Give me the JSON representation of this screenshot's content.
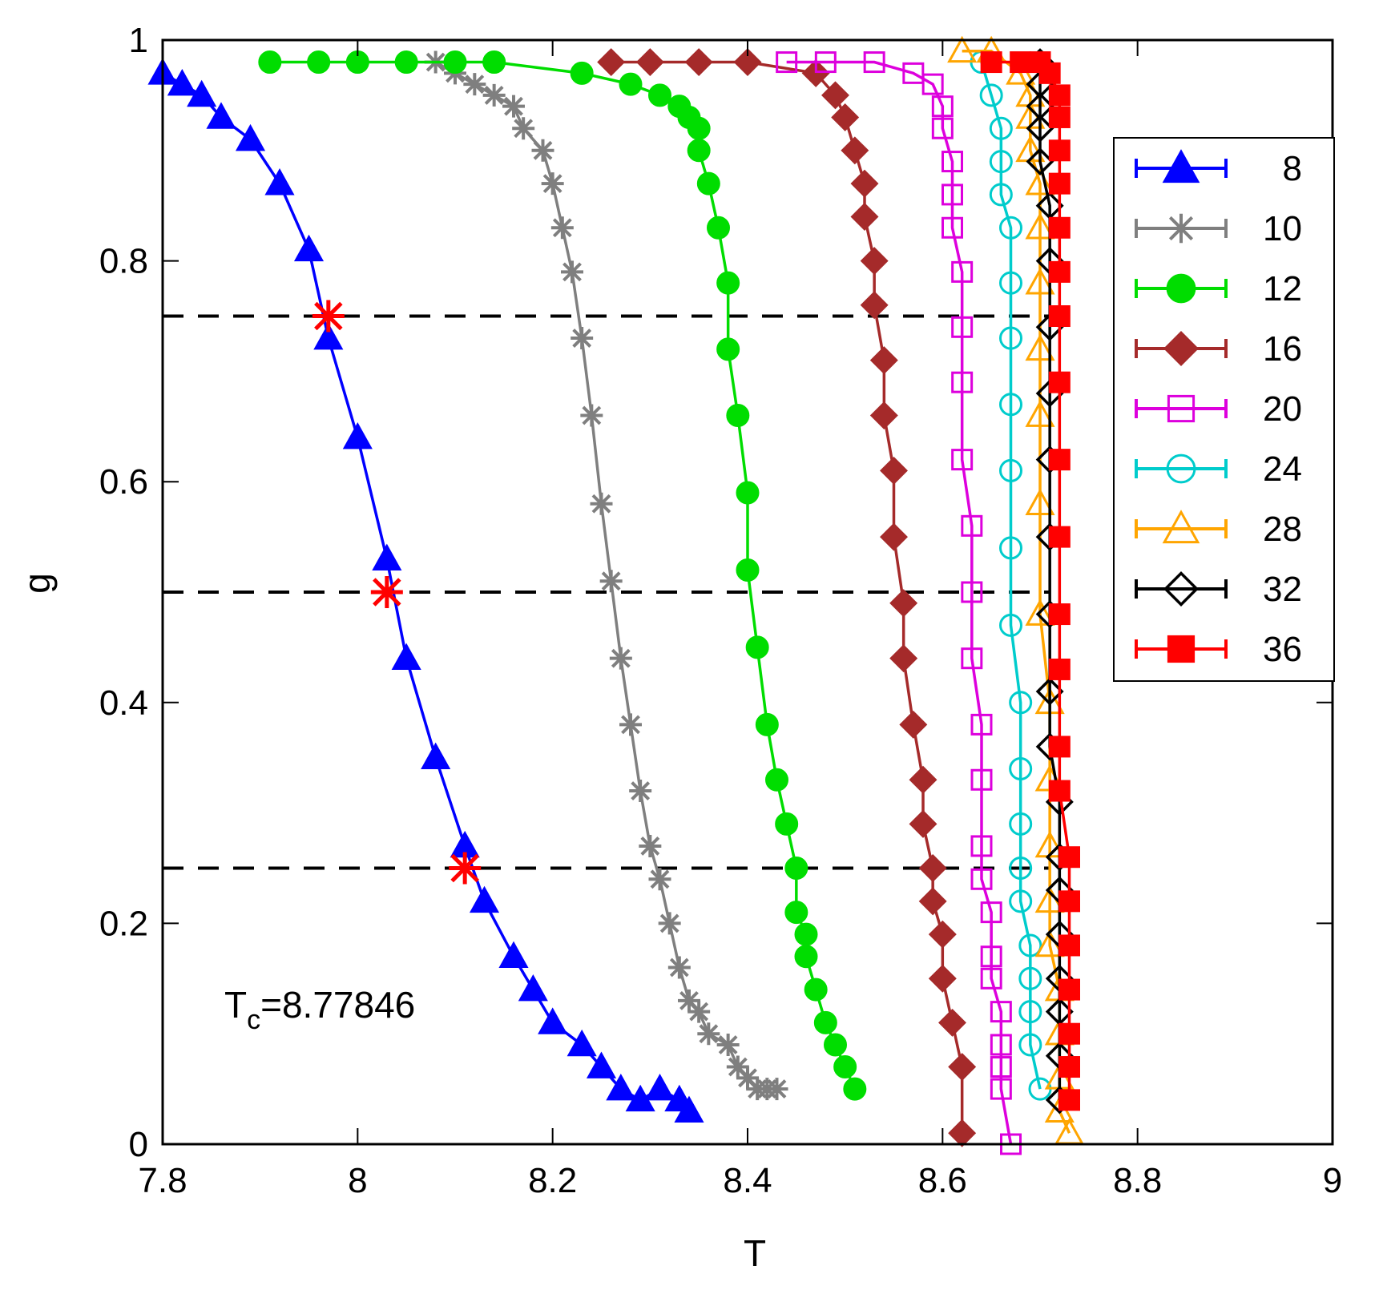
{
  "chart_data": {
    "type": "line",
    "title": "",
    "xlabel": "T",
    "ylabel": "g",
    "xlim": [
      7.8,
      9.0
    ],
    "ylim": [
      0,
      1
    ],
    "xticks": [
      {
        "v": 7.8,
        "label": "7.8"
      },
      {
        "v": 8.0,
        "label": "8"
      },
      {
        "v": 8.2,
        "label": "8.2"
      },
      {
        "v": 8.4,
        "label": "8.4"
      },
      {
        "v": 8.6,
        "label": "8.6"
      },
      {
        "v": 8.8,
        "label": "8.8"
      },
      {
        "v": 9.0,
        "label": "9"
      }
    ],
    "yticks": [
      {
        "v": 0,
        "label": "0"
      },
      {
        "v": 0.2,
        "label": "0.2"
      },
      {
        "v": 0.4,
        "label": "0.4"
      },
      {
        "v": 0.6,
        "label": "0.6"
      },
      {
        "v": 0.8,
        "label": "0.8"
      },
      {
        "v": 1,
        "label": "1"
      }
    ],
    "legend_position": "top-right",
    "annotation": {
      "main": "T",
      "sub": "c",
      "rest": "=8.77846"
    },
    "reference_lines": [
      {
        "y": 0.75,
        "x_end": 8.71
      },
      {
        "y": 0.5,
        "x_end": 8.71
      },
      {
        "y": 0.25,
        "x_end": 8.71
      }
    ],
    "highlight_points": [
      {
        "x": 7.97,
        "y": 0.75
      },
      {
        "x": 8.03,
        "y": 0.5
      },
      {
        "x": 8.11,
        "y": 0.25
      }
    ],
    "colors": {
      "highlight": "#ff0000",
      "reference": "#000000"
    },
    "series": [
      {
        "name": "8",
        "color": "#0000ff",
        "marker": "triangle-filled",
        "x": [
          7.8,
          7.82,
          7.84,
          7.86,
          7.89,
          7.92,
          7.95,
          7.97,
          8.0,
          8.03,
          8.05,
          8.08,
          8.11,
          8.13,
          8.16,
          8.18,
          8.2,
          8.23,
          8.25,
          8.27,
          8.29,
          8.31,
          8.33,
          8.34
        ],
        "y": [
          0.97,
          0.96,
          0.95,
          0.93,
          0.91,
          0.87,
          0.81,
          0.73,
          0.64,
          0.53,
          0.44,
          0.35,
          0.27,
          0.22,
          0.17,
          0.14,
          0.11,
          0.09,
          0.07,
          0.05,
          0.04,
          0.05,
          0.04,
          0.03
        ]
      },
      {
        "name": "10",
        "color": "#7f7f7f",
        "marker": "asterisk",
        "x": [
          8.08,
          8.1,
          8.12,
          8.14,
          8.16,
          8.17,
          8.19,
          8.2,
          8.21,
          8.22,
          8.23,
          8.24,
          8.25,
          8.26,
          8.27,
          8.28,
          8.29,
          8.3,
          8.31,
          8.32,
          8.33,
          8.34,
          8.35,
          8.36,
          8.38,
          8.39,
          8.4,
          8.41,
          8.42,
          8.43
        ],
        "y": [
          0.98,
          0.97,
          0.96,
          0.95,
          0.94,
          0.92,
          0.9,
          0.87,
          0.83,
          0.79,
          0.73,
          0.66,
          0.58,
          0.51,
          0.44,
          0.38,
          0.32,
          0.27,
          0.24,
          0.2,
          0.16,
          0.13,
          0.12,
          0.1,
          0.09,
          0.07,
          0.06,
          0.05,
          0.05,
          0.05
        ]
      },
      {
        "name": "12",
        "color": "#00dd00",
        "marker": "circle-filled",
        "x": [
          7.91,
          7.96,
          8.0,
          8.05,
          8.1,
          8.14,
          8.23,
          8.28,
          8.31,
          8.33,
          8.34,
          8.35,
          8.35,
          8.36,
          8.37,
          8.38,
          8.38,
          8.39,
          8.4,
          8.4,
          8.41,
          8.42,
          8.43,
          8.44,
          8.45,
          8.45,
          8.46,
          8.46,
          8.47,
          8.48,
          8.49,
          8.5,
          8.51
        ],
        "y": [
          0.98,
          0.98,
          0.98,
          0.98,
          0.98,
          0.98,
          0.97,
          0.96,
          0.95,
          0.94,
          0.93,
          0.92,
          0.9,
          0.87,
          0.83,
          0.78,
          0.72,
          0.66,
          0.59,
          0.52,
          0.45,
          0.38,
          0.33,
          0.29,
          0.25,
          0.21,
          0.19,
          0.17,
          0.14,
          0.11,
          0.09,
          0.07,
          0.05
        ]
      },
      {
        "name": "16",
        "color": "#a52a2a",
        "marker": "diamond-filled",
        "x": [
          8.26,
          8.3,
          8.35,
          8.4,
          8.47,
          8.49,
          8.5,
          8.51,
          8.52,
          8.52,
          8.53,
          8.53,
          8.54,
          8.54,
          8.55,
          8.55,
          8.56,
          8.56,
          8.57,
          8.58,
          8.58,
          8.59,
          8.59,
          8.6,
          8.6,
          8.61,
          8.62,
          8.62
        ],
        "y": [
          0.98,
          0.98,
          0.98,
          0.98,
          0.97,
          0.95,
          0.93,
          0.9,
          0.87,
          0.84,
          0.8,
          0.76,
          0.71,
          0.66,
          0.61,
          0.55,
          0.49,
          0.44,
          0.38,
          0.33,
          0.29,
          0.25,
          0.22,
          0.19,
          0.15,
          0.11,
          0.07,
          0.01
        ]
      },
      {
        "name": "20",
        "color": "#dd00dd",
        "marker": "square-open",
        "x": [
          8.44,
          8.48,
          8.53,
          8.57,
          8.59,
          8.6,
          8.6,
          8.61,
          8.61,
          8.61,
          8.62,
          8.62,
          8.62,
          8.62,
          8.63,
          8.63,
          8.63,
          8.64,
          8.64,
          8.64,
          8.64,
          8.65,
          8.65,
          8.65,
          8.66,
          8.66,
          8.66,
          8.66,
          8.67
        ],
        "y": [
          0.98,
          0.98,
          0.98,
          0.97,
          0.96,
          0.94,
          0.92,
          0.89,
          0.86,
          0.83,
          0.79,
          0.74,
          0.69,
          0.62,
          0.56,
          0.5,
          0.44,
          0.38,
          0.33,
          0.27,
          0.24,
          0.21,
          0.17,
          0.15,
          0.12,
          0.09,
          0.07,
          0.05,
          0.0
        ]
      },
      {
        "name": "24",
        "color": "#00cccc",
        "marker": "circle-open",
        "x": [
          8.64,
          8.65,
          8.66,
          8.66,
          8.66,
          8.67,
          8.67,
          8.67,
          8.67,
          8.67,
          8.67,
          8.67,
          8.68,
          8.68,
          8.68,
          8.68,
          8.68,
          8.69,
          8.69,
          8.69,
          8.69,
          8.7
        ],
        "y": [
          0.98,
          0.95,
          0.92,
          0.89,
          0.86,
          0.83,
          0.78,
          0.73,
          0.67,
          0.61,
          0.54,
          0.47,
          0.4,
          0.34,
          0.29,
          0.25,
          0.22,
          0.18,
          0.15,
          0.12,
          0.09,
          0.05
        ]
      },
      {
        "name": "28",
        "color": "#ffa500",
        "marker": "triangle-open",
        "x": [
          8.62,
          8.65,
          8.68,
          8.69,
          8.69,
          8.69,
          8.7,
          8.7,
          8.7,
          8.7,
          8.7,
          8.7,
          8.7,
          8.71,
          8.71,
          8.71,
          8.71,
          8.71,
          8.72,
          8.72,
          8.72,
          8.72,
          8.73
        ],
        "y": [
          0.99,
          0.99,
          0.97,
          0.95,
          0.93,
          0.9,
          0.87,
          0.83,
          0.78,
          0.72,
          0.66,
          0.58,
          0.48,
          0.4,
          0.33,
          0.27,
          0.22,
          0.18,
          0.14,
          0.1,
          0.06,
          0.03,
          0.01
        ]
      },
      {
        "name": "32",
        "color": "#000000",
        "marker": "diamond-open",
        "x": [
          8.7,
          8.7,
          8.7,
          8.7,
          8.7,
          8.71,
          8.71,
          8.71,
          8.71,
          8.71,
          8.71,
          8.71,
          8.71,
          8.71,
          8.72,
          8.72,
          8.72,
          8.72,
          8.72,
          8.72,
          8.72,
          8.72
        ],
        "y": [
          0.98,
          0.96,
          0.94,
          0.92,
          0.89,
          0.85,
          0.8,
          0.74,
          0.68,
          0.62,
          0.55,
          0.48,
          0.41,
          0.36,
          0.31,
          0.26,
          0.23,
          0.19,
          0.15,
          0.12,
          0.08,
          0.04
        ]
      },
      {
        "name": "36",
        "color": "#ff0000",
        "marker": "square-filled",
        "x": [
          8.65,
          8.68,
          8.7,
          8.71,
          8.72,
          8.72,
          8.72,
          8.72,
          8.72,
          8.72,
          8.72,
          8.72,
          8.72,
          8.72,
          8.72,
          8.72,
          8.72,
          8.72,
          8.73,
          8.73,
          8.73,
          8.73,
          8.73,
          8.73,
          8.73
        ],
        "y": [
          0.98,
          0.98,
          0.98,
          0.97,
          0.95,
          0.93,
          0.9,
          0.87,
          0.83,
          0.79,
          0.75,
          0.69,
          0.62,
          0.55,
          0.48,
          0.43,
          0.36,
          0.32,
          0.26,
          0.22,
          0.18,
          0.14,
          0.1,
          0.07,
          0.04
        ]
      }
    ]
  }
}
